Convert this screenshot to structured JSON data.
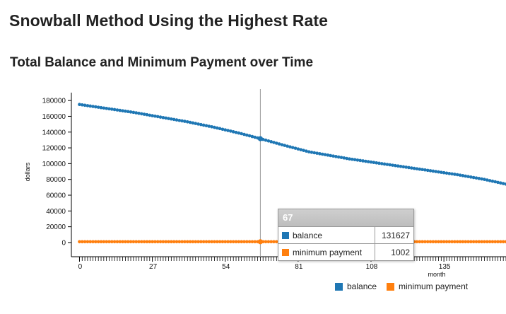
{
  "page_title": "Snowball Method Using the Highest Rate",
  "chart_title": "Total Balance and Minimum Payment over Time",
  "chart_data": {
    "type": "line",
    "title": "Total Balance and Minimum Payment over Time",
    "xlabel": "month",
    "ylabel": "dollars",
    "x_ticks": [
      0,
      27,
      54,
      81,
      108,
      135
    ],
    "y_ticks": [
      0,
      20000,
      40000,
      60000,
      80000,
      100000,
      120000,
      140000,
      160000,
      180000
    ],
    "xlim": [
      -3,
      158
    ],
    "ylim": [
      -18000,
      190000
    ],
    "series": [
      {
        "name": "balance",
        "color": "#1f77b4",
        "x": [
          0,
          10,
          20,
          30,
          40,
          50,
          60,
          67,
          75,
          85,
          90,
          100,
          110,
          120,
          130,
          140,
          150,
          158
        ],
        "values": [
          175000,
          170000,
          165000,
          159000,
          153000,
          146000,
          138000,
          131627,
          124000,
          115000,
          112000,
          106000,
          101000,
          96000,
          91000,
          86000,
          80000,
          74000
        ]
      },
      {
        "name": "minimum payment",
        "color": "#ff7f0e",
        "x": [
          0,
          158
        ],
        "values": [
          1002,
          1002
        ]
      }
    ],
    "hover": {
      "month": 67,
      "balance": 131627,
      "minimum_payment": 1002
    }
  },
  "tooltip": {
    "header": "67",
    "rows": [
      {
        "label": "balance",
        "value": "131627",
        "color": "#1f77b4"
      },
      {
        "label": "minimum payment",
        "value": "1002",
        "color": "#ff7f0e"
      }
    ]
  },
  "legend": [
    {
      "label": "balance",
      "color": "#1f77b4"
    },
    {
      "label": "minimum payment",
      "color": "#ff7f0e"
    }
  ]
}
